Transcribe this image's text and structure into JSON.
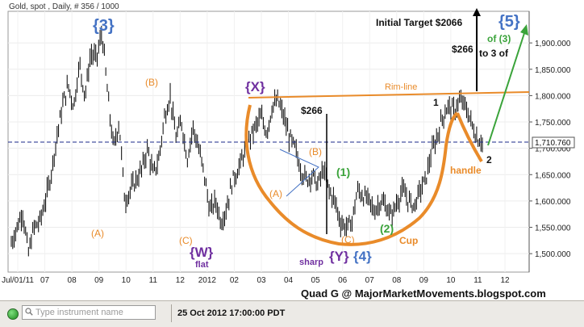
{
  "header": "Gold, spot , Daily, # 356 / 1000",
  "chart_data": {
    "type": "candlestick",
    "title": "Gold, spot , Daily, # 356 / 1000",
    "ylim": [
      1465,
      1960
    ],
    "y_ticks": [
      "1,500.000",
      "1,550.000",
      "1,600.000",
      "1,650.000",
      "1,700.000",
      "1,750.000",
      "1,800.000",
      "1,850.000",
      "1,900.000"
    ],
    "x_ticks": [
      "Jul/01/11",
      "07",
      "08",
      "09",
      "10",
      "11",
      "12",
      "2012",
      "02",
      "03",
      "04",
      "05",
      "06",
      "07",
      "08",
      "09",
      "10",
      "11",
      "12"
    ],
    "series_path": [
      [
        1,
        1520
      ],
      [
        3,
        1580
      ],
      [
        4,
        1500
      ],
      [
        5,
        1550
      ],
      [
        6,
        1560
      ],
      [
        7,
        1600
      ],
      [
        8,
        1650
      ],
      [
        9,
        1720
      ],
      [
        10,
        1780
      ],
      [
        11,
        1820
      ],
      [
        12,
        1780
      ],
      [
        13,
        1860
      ],
      [
        14,
        1800
      ],
      [
        15,
        1880
      ],
      [
        16,
        1870
      ],
      [
        17,
        1920
      ],
      [
        18,
        1800
      ],
      [
        19,
        1700
      ],
      [
        20,
        1750
      ],
      [
        21,
        1600
      ],
      [
        22,
        1620
      ],
      [
        23,
        1640
      ],
      [
        24,
        1660
      ],
      [
        25,
        1700
      ],
      [
        26,
        1650
      ],
      [
        27,
        1680
      ],
      [
        28,
        1760
      ],
      [
        29,
        1800
      ],
      [
        30,
        1720
      ],
      [
        31,
        1750
      ],
      [
        32,
        1680
      ],
      [
        33,
        1740
      ],
      [
        34,
        1700
      ],
      [
        35,
        1650
      ],
      [
        36,
        1580
      ],
      [
        37,
        1600
      ],
      [
        38,
        1560
      ],
      [
        39,
        1590
      ],
      [
        40,
        1640
      ],
      [
        41,
        1660
      ],
      [
        42,
        1690
      ],
      [
        43,
        1720
      ],
      [
        44,
        1740
      ],
      [
        45,
        1760
      ],
      [
        46,
        1730
      ],
      [
        47,
        1780
      ],
      [
        48,
        1790
      ],
      [
        49,
        1760
      ],
      [
        50,
        1720
      ],
      [
        51,
        1700
      ],
      [
        52,
        1660
      ],
      [
        53,
        1640
      ],
      [
        54,
        1650
      ],
      [
        55,
        1630
      ],
      [
        56,
        1660
      ],
      [
        57,
        1620
      ],
      [
        58,
        1600
      ],
      [
        59,
        1560
      ],
      [
        60,
        1550
      ],
      [
        61,
        1560
      ],
      [
        62,
        1620
      ],
      [
        63,
        1610
      ],
      [
        64,
        1600
      ],
      [
        65,
        1580
      ],
      [
        66,
        1600
      ],
      [
        67,
        1590
      ],
      [
        68,
        1570
      ],
      [
        69,
        1600
      ],
      [
        70,
        1620
      ],
      [
        71,
        1600
      ],
      [
        72,
        1590
      ],
      [
        73,
        1620
      ],
      [
        74,
        1640
      ],
      [
        75,
        1690
      ],
      [
        76,
        1720
      ],
      [
        77,
        1760
      ],
      [
        78,
        1780
      ],
      [
        79,
        1770
      ],
      [
        80,
        1790
      ],
      [
        81,
        1780
      ],
      [
        82,
        1750
      ],
      [
        83,
        1720
      ],
      [
        84,
        1712
      ]
    ],
    "last_price": "1,710.760",
    "annotations": {
      "w3": "{3}",
      "w5": "{5}",
      "of3": "of (3)",
      "to3of": "to 3 of",
      "initial_target": "Initial Target $2066",
      "gap_266_top": "$266",
      "gap_266_mid": "$266",
      "rim_line": "Rim-line",
      "x": "{X}",
      "w": "{W}",
      "flat": "flat",
      "y4": "{Y}{4}",
      "y4_y": "{Y}",
      "y4_4": "{4}",
      "sharp": "sharp",
      "a1": "(A)",
      "b1": "(B)",
      "c1": "(C)",
      "a2": "(A)",
      "b2": "(B)",
      "c2": "(C)",
      "one_green": "(1)",
      "two_green": "(2)",
      "one": "1",
      "two": "2",
      "cup": "Cup",
      "handle": "handle",
      "credit": "Quad G @ MajorMarketMovements.blogspot.com"
    },
    "colors": {
      "wave_purple": "#7030a0",
      "wave_blue": "#4472c4",
      "orange": "#e98b2a",
      "green": "#3aa33a",
      "candle": "#000000",
      "dashed": "#1a2a8a"
    }
  },
  "footer": {
    "search_placeholder": "Type instrument name",
    "datetime": "25 Oct 2012 17:00:00 PDT"
  }
}
